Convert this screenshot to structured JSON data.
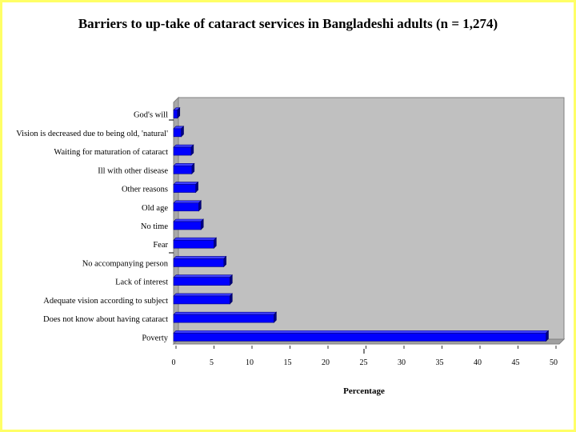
{
  "chart_data": {
    "type": "bar",
    "orientation": "horizontal",
    "title": "Barriers to up-take of cataract services in Bangladeshi adults (n = 1,274)",
    "xlabel": "Percentage",
    "ylabel": "",
    "xlim": [
      0,
      50
    ],
    "xticks": [
      0,
      5,
      10,
      15,
      20,
      25,
      30,
      35,
      40,
      45,
      50
    ],
    "categories": [
      "God's will",
      "Vision is decreased due to being old, 'natural'",
      "Waiting for maturation of cataract",
      "Ill with other disease",
      "Other reasons",
      "Old age",
      "No time",
      "Fear",
      "No accompanying person",
      "Lack of interest",
      "Adequate vision according to subject",
      "Does not know about having cataract",
      "Poverty"
    ],
    "values": [
      0.5,
      1.0,
      2.3,
      2.4,
      2.9,
      3.3,
      3.6,
      5.3,
      6.6,
      7.4,
      7.4,
      13.2,
      49.0
    ],
    "bar_color": "#0000ff",
    "plot_background": "#c0c0c0",
    "grid": false
  }
}
